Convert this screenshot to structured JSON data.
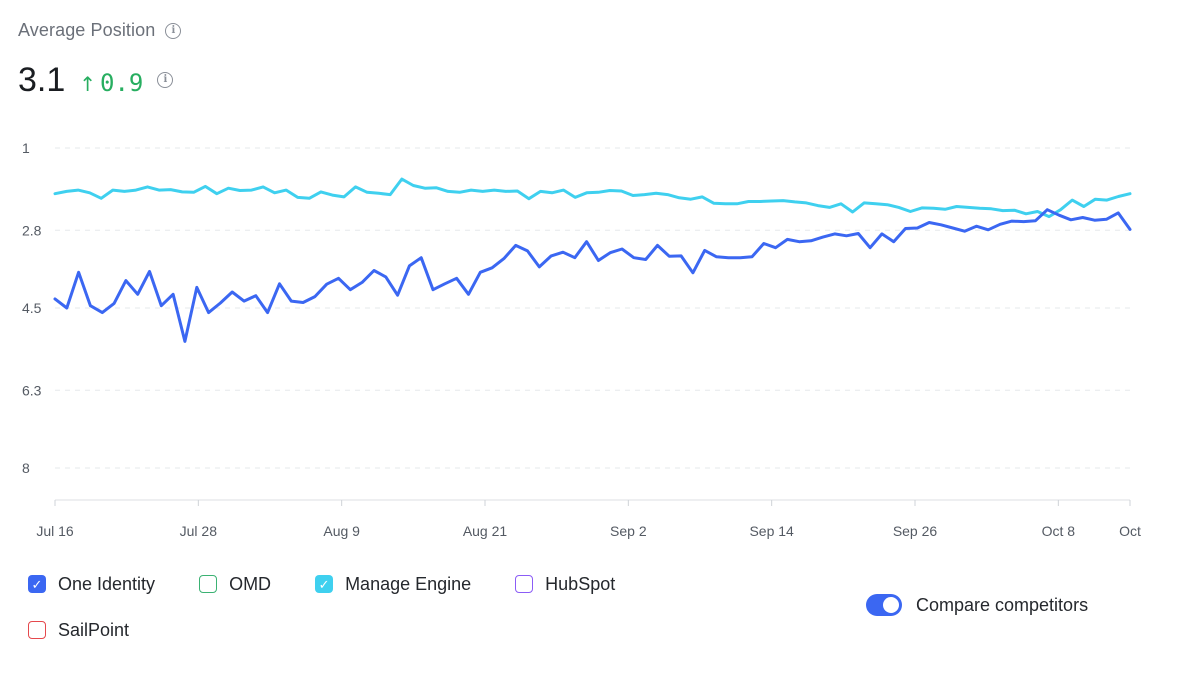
{
  "header": {
    "title": "Average Position",
    "info_icon": "info-icon",
    "metric_value": "3.1",
    "metric_delta": "0.9",
    "metric_delta_icon": "arrow-up-icon",
    "metric_delta_color": "#27ae60"
  },
  "chart_data": {
    "type": "line",
    "y_ticks": [
      "1",
      "2.8",
      "4.5",
      "6.3",
      "8"
    ],
    "y_tick_values": [
      1,
      2.8,
      4.5,
      6.3,
      8
    ],
    "ylim": [
      1,
      8.7
    ],
    "y_inverted": true,
    "x_tick_labels": [
      "Jul 16",
      "Jul 28",
      "Aug 9",
      "Aug 21",
      "Sep 2",
      "Sep 14",
      "Sep 26",
      "Oct 8",
      "Oct"
    ],
    "x_tick_days": [
      0,
      12,
      24,
      36,
      48,
      60,
      72,
      84,
      90
    ],
    "grid": "horizontal-dashed",
    "series": [
      {
        "name": "Manage Engine",
        "color": "#3fd0ef",
        "values": [
          2.0,
          1.95,
          1.92,
          1.98,
          2.1,
          1.92,
          1.95,
          1.92,
          1.85,
          1.92,
          1.91,
          1.96,
          1.97,
          1.84,
          2.0,
          1.88,
          1.93,
          1.92,
          1.85,
          1.98,
          1.92,
          2.08,
          2.1,
          1.96,
          2.03,
          2.07,
          1.85,
          1.97,
          1.99,
          2.02,
          1.68,
          1.82,
          1.88,
          1.87,
          1.95,
          1.97,
          1.92,
          1.95,
          1.92,
          1.95,
          1.94,
          2.11,
          1.95,
          1.98,
          1.92,
          2.08,
          1.98,
          1.97,
          1.93,
          1.94,
          2.04,
          2.02,
          1.99,
          2.02,
          2.09,
          2.12,
          2.07,
          2.21,
          2.22,
          2.22,
          2.17,
          2.17,
          2.16,
          2.15,
          2.18,
          2.2,
          2.26,
          2.3,
          2.22,
          2.4,
          2.2,
          2.22,
          2.24,
          2.3,
          2.39,
          2.31,
          2.32,
          2.34,
          2.28,
          2.3,
          2.32,
          2.33,
          2.37,
          2.36,
          2.44,
          2.39,
          2.5,
          2.35,
          2.14,
          2.28,
          2.12,
          2.14,
          2.06,
          2.0
        ]
      },
      {
        "name": "One Identity",
        "color": "#3b67f2",
        "values": [
          4.3,
          4.5,
          3.72,
          4.45,
          4.6,
          4.4,
          3.9,
          4.2,
          3.7,
          4.45,
          4.2,
          5.23,
          4.05,
          4.6,
          4.39,
          4.15,
          4.35,
          4.23,
          4.6,
          3.97,
          4.35,
          4.38,
          4.25,
          3.98,
          3.85,
          4.1,
          3.94,
          3.68,
          3.82,
          4.22,
          3.58,
          3.4,
          4.1,
          3.97,
          3.85,
          4.2,
          3.72,
          3.62,
          3.42,
          3.13,
          3.25,
          3.6,
          3.36,
          3.28,
          3.4,
          3.05,
          3.46,
          3.29,
          3.21,
          3.4,
          3.44,
          3.13,
          3.37,
          3.36,
          3.73,
          3.24,
          3.38,
          3.4,
          3.4,
          3.38,
          3.09,
          3.18,
          3.0,
          3.05,
          3.03,
          2.95,
          2.88,
          2.92,
          2.87,
          3.18,
          2.88,
          3.05,
          2.76,
          2.75,
          2.63,
          2.68,
          2.75,
          2.82,
          2.71,
          2.79,
          2.67,
          2.6,
          2.61,
          2.59,
          2.35,
          2.47,
          2.57,
          2.52,
          2.58,
          2.56,
          2.42,
          2.78
        ]
      }
    ]
  },
  "legend": {
    "items": [
      {
        "label": "One Identity",
        "checked": true,
        "color": "#3b67f2"
      },
      {
        "label": "OMD",
        "checked": false,
        "color": "#3bb273"
      },
      {
        "label": "Manage Engine",
        "checked": true,
        "color": "#3fd0ef"
      },
      {
        "label": "HubSpot",
        "checked": false,
        "color": "#8b5cf6"
      },
      {
        "label": "SailPoint",
        "checked": false,
        "color": "#e5484d"
      }
    ],
    "check_mark": "✓"
  },
  "toggle": {
    "label": "Compare competitors",
    "on": true,
    "color": "#3b67f2"
  }
}
